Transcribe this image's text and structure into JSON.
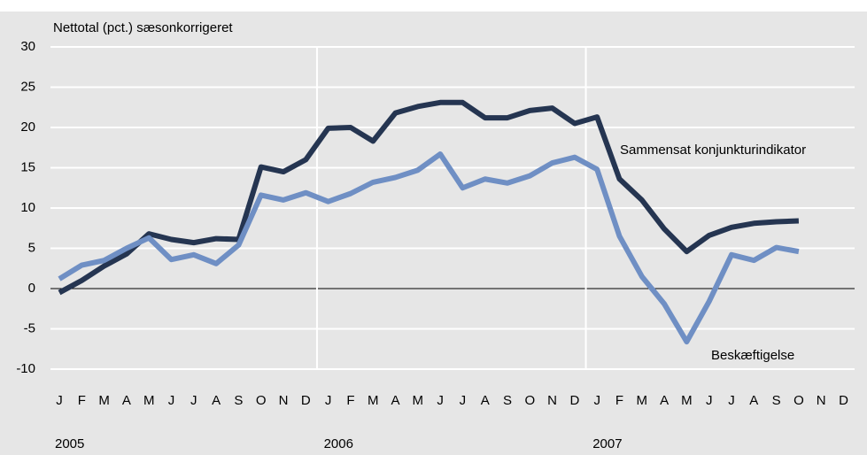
{
  "chart_data": {
    "type": "line",
    "ylabel": "Nettotal (pct.) sæsonkorrigeret",
    "categories": [
      "J",
      "F",
      "M",
      "A",
      "M",
      "J",
      "J",
      "A",
      "S",
      "O",
      "N",
      "D",
      "J",
      "F",
      "M",
      "A",
      "M",
      "J",
      "J",
      "A",
      "S",
      "O",
      "N",
      "D",
      "J",
      "F",
      "M",
      "A",
      "M",
      "J",
      "J",
      "A",
      "S",
      "O",
      "N",
      "D"
    ],
    "year_labels": [
      "2005",
      "2006",
      "2007"
    ],
    "ylim": [
      -10,
      30
    ],
    "yticks": [
      -10,
      -5,
      0,
      5,
      10,
      15,
      20,
      25,
      30
    ],
    "grid": true,
    "series": [
      {
        "name": "Sammensat konjunkturindikator",
        "color": "#253551",
        "values": [
          -0.5,
          1,
          2.8,
          4.3,
          6.8,
          6.1,
          5.7,
          6.2,
          6.1,
          15.1,
          14.5,
          16,
          19.9,
          20,
          18.3,
          21.8,
          22.6,
          23.1,
          23.1,
          21.2,
          21.2,
          22.1,
          22.4,
          20.5,
          21.3,
          13.6,
          11,
          7.4,
          4.6,
          6.6,
          7.6,
          8.1,
          8.3,
          8.4,
          null,
          null
        ]
      },
      {
        "name": "Beskæftigelse",
        "color": "#6f8fc4",
        "values": [
          1.2,
          2.9,
          3.5,
          5,
          6.3,
          3.6,
          4.2,
          3.1,
          5.4,
          11.6,
          11,
          11.9,
          10.8,
          11.8,
          13.2,
          13.8,
          14.7,
          16.7,
          12.5,
          13.6,
          13.1,
          14,
          15.6,
          16.3,
          14.8,
          6.5,
          1.5,
          -1.9,
          -6.6,
          -1.6,
          4.2,
          3.5,
          5.1,
          4.6,
          null,
          null
        ]
      }
    ]
  }
}
